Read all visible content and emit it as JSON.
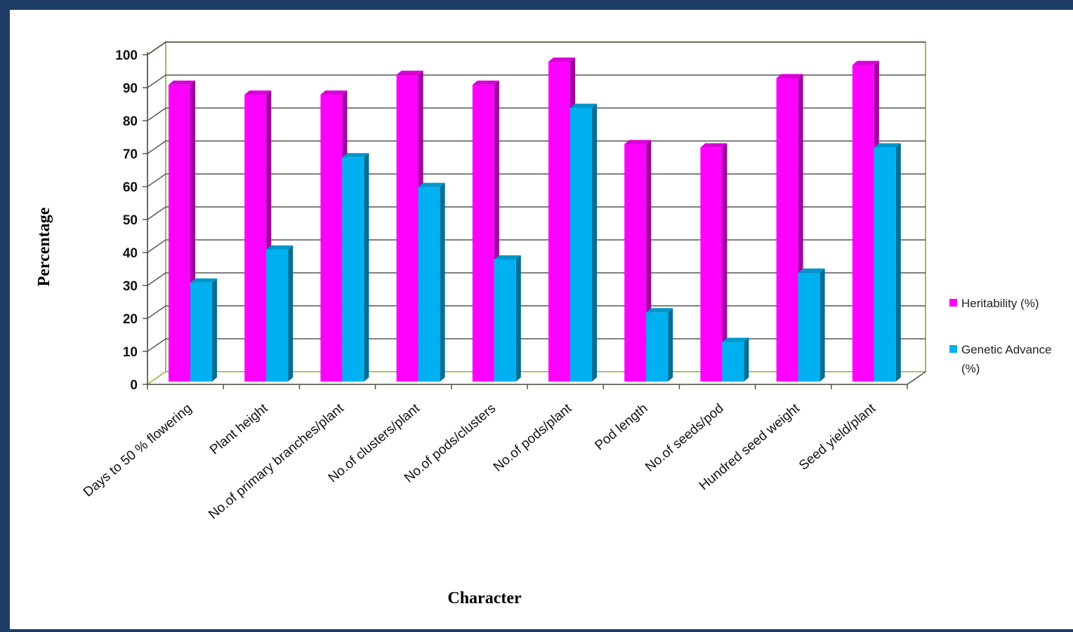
{
  "chart_data": {
    "type": "bar",
    "xlabel": "Character",
    "ylabel": "Percentage",
    "ylim": [
      0,
      100
    ],
    "yticks": [
      0,
      10,
      20,
      30,
      40,
      50,
      60,
      70,
      80,
      90,
      100
    ],
    "grid": true,
    "legend_position": "right",
    "categories": [
      "Days to 50 % flowering",
      "Plant height",
      "No.of primary branches/plant",
      "No.of clusters/plant",
      "No.of pods/clusters",
      "No.of pods/plant",
      "Pod length",
      "No.of seeds/pod",
      "Hundred seed weight",
      "Seed yield/plant"
    ],
    "series": [
      {
        "name": "Heritability (%)",
        "color": "#ff00ff",
        "values": [
          93,
          90,
          90,
          96,
          93,
          100,
          75,
          74,
          95,
          99
        ]
      },
      {
        "name": "Genetic Advance (%)",
        "legend_lines": [
          "Genetic Advance",
          "(%)"
        ],
        "color": "#00b0f0",
        "values": [
          33,
          43,
          71,
          62,
          40,
          86,
          24,
          15,
          36,
          74
        ]
      }
    ]
  }
}
